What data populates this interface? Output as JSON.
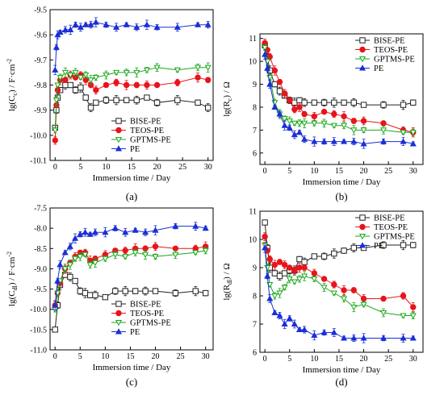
{
  "series_colors": {
    "BISE-PE": "#222222",
    "TEOS-PE": "#e8141b",
    "GPTMS-PE": "#1aa61a",
    "PE": "#1a2fd6"
  },
  "chart_data": [
    {
      "type": "line",
      "panel_label": "(a)",
      "xlabel": "Immersion time / Day",
      "ylabel": "lg(C",
      "ylabel_sub": "c",
      "ylabel_tail": ") / F·cm",
      "ylabel_sup": "-2",
      "xlim": [
        -1,
        31
      ],
      "ylim": [
        -10.1,
        -9.5
      ],
      "xticks": [
        0,
        5,
        10,
        15,
        20,
        25,
        30
      ],
      "xtick_labels": [
        "0",
        "5",
        "10",
        "15",
        "20",
        "25",
        "30"
      ],
      "yticks": [
        -10.1,
        -10.0,
        -9.9,
        -9.8,
        -9.7,
        -9.6,
        -9.5
      ],
      "ytick_labels": [
        "-10.1",
        "-10.0",
        "-9.9",
        "-9.8",
        "-9.7",
        "-9.6",
        "-9.5"
      ],
      "legend": "bottom-right",
      "series": [
        {
          "name": "BISE-PE",
          "marker": "square-open",
          "x": [
            0,
            0.25,
            0.5,
            1,
            2,
            3,
            4,
            5,
            6,
            7,
            8,
            10,
            12,
            14,
            16,
            18,
            20,
            24,
            28,
            30
          ],
          "y": [
            -9.97,
            -9.9,
            -9.85,
            -9.82,
            -9.8,
            -9.8,
            -9.82,
            -9.81,
            -9.85,
            -9.89,
            -9.87,
            -9.86,
            -9.86,
            -9.86,
            -9.86,
            -9.85,
            -9.87,
            -9.86,
            -9.87,
            -9.89
          ]
        },
        {
          "name": "TEOS-PE",
          "marker": "circle",
          "x": [
            0,
            0.25,
            0.5,
            1,
            2,
            3,
            4,
            5,
            6,
            7,
            8,
            10,
            12,
            14,
            16,
            18,
            20,
            24,
            28,
            30
          ],
          "y": [
            -10.02,
            -9.88,
            -9.82,
            -9.78,
            -9.78,
            -9.76,
            -9.77,
            -9.76,
            -9.78,
            -9.8,
            -9.82,
            -9.8,
            -9.79,
            -9.8,
            -9.8,
            -9.8,
            -9.8,
            -9.79,
            -9.77,
            -9.78
          ]
        },
        {
          "name": "GPTMS-PE",
          "marker": "triangle-down-open",
          "x": [
            0,
            0.25,
            0.5,
            1,
            2,
            3,
            4,
            5,
            6,
            7,
            8,
            10,
            12,
            14,
            16,
            18,
            20,
            24,
            28,
            30
          ],
          "y": [
            -9.98,
            -9.86,
            -9.8,
            -9.77,
            -9.75,
            -9.76,
            -9.75,
            -9.77,
            -9.76,
            -9.78,
            -9.77,
            -9.76,
            -9.75,
            -9.75,
            -9.75,
            -9.74,
            -9.73,
            -9.74,
            -9.73,
            -9.73
          ]
        },
        {
          "name": "PE",
          "marker": "triangle-up",
          "x": [
            0,
            0.25,
            0.5,
            1,
            2,
            3,
            4,
            5,
            6,
            7,
            8,
            10,
            12,
            14,
            16,
            18,
            20,
            24,
            28,
            30
          ],
          "y": [
            -9.74,
            -9.65,
            -9.6,
            -9.59,
            -9.58,
            -9.58,
            -9.56,
            -9.57,
            -9.56,
            -9.56,
            -9.55,
            -9.56,
            -9.57,
            -9.56,
            -9.57,
            -9.56,
            -9.57,
            -9.57,
            -9.56,
            -9.56
          ]
        }
      ]
    },
    {
      "type": "line",
      "panel_label": "(b)",
      "xlabel": "Immersion time / Day",
      "ylabel": "lg(R",
      "ylabel_sub": "c",
      "ylabel_tail": ") / Ω",
      "ylabel_sup": "",
      "xlim": [
        -1,
        32
      ],
      "ylim": [
        5.5,
        11.2
      ],
      "xticks": [
        0,
        5,
        10,
        15,
        20,
        25,
        30
      ],
      "xtick_labels": [
        "0",
        "5",
        "10",
        "15",
        "20",
        "25",
        "30"
      ],
      "yticks": [
        6,
        7,
        8,
        9,
        10,
        11
      ],
      "ytick_labels": [
        "6",
        "7",
        "8",
        "9",
        "10",
        "11"
      ],
      "legend": "top-right",
      "series": [
        {
          "name": "BISE-PE",
          "marker": "square-open",
          "x": [
            0,
            0.5,
            1,
            2,
            3,
            4,
            5,
            6,
            7,
            8,
            10,
            12,
            14,
            16,
            18,
            20,
            24,
            28,
            30
          ],
          "y": [
            10.7,
            10.2,
            9.6,
            9.0,
            8.7,
            8.5,
            8.3,
            8.2,
            8.3,
            8.2,
            8.2,
            8.2,
            8.2,
            8.2,
            8.2,
            8.1,
            8.1,
            8.1,
            8.2
          ]
        },
        {
          "name": "TEOS-PE",
          "marker": "circle",
          "x": [
            0,
            0.5,
            1,
            2,
            3,
            4,
            5,
            6,
            7,
            8,
            10,
            12,
            14,
            16,
            18,
            20,
            24,
            28,
            30
          ],
          "y": [
            10.8,
            10.5,
            10.2,
            9.6,
            9.1,
            8.6,
            8.3,
            7.9,
            8.0,
            7.7,
            7.6,
            7.8,
            7.7,
            7.6,
            7.4,
            7.4,
            7.3,
            7.0,
            6.9
          ]
        },
        {
          "name": "GPTMS-PE",
          "marker": "triangle-down-open",
          "x": [
            0,
            0.5,
            1,
            2,
            3,
            4,
            5,
            6,
            7,
            8,
            10,
            12,
            14,
            16,
            18,
            20,
            24,
            28,
            30
          ],
          "y": [
            10.6,
            10.0,
            9.3,
            8.2,
            7.7,
            7.5,
            7.4,
            7.3,
            7.3,
            7.3,
            7.3,
            7.3,
            7.2,
            7.2,
            7.0,
            7.0,
            7.0,
            6.9,
            6.9
          ]
        },
        {
          "name": "PE",
          "marker": "triangle-up",
          "x": [
            0,
            0.5,
            1,
            2,
            3,
            4,
            5,
            6,
            7,
            8,
            10,
            12,
            14,
            16,
            18,
            20,
            24,
            28,
            30
          ],
          "y": [
            10.3,
            9.7,
            9.0,
            8.0,
            7.7,
            7.2,
            7.1,
            6.8,
            6.9,
            6.6,
            6.5,
            6.5,
            6.5,
            6.5,
            6.5,
            6.4,
            6.5,
            6.5,
            6.4
          ]
        }
      ]
    },
    {
      "type": "line",
      "panel_label": "(c)",
      "xlabel": "Immersion time / Day",
      "ylabel": "lg(C",
      "ylabel_sub": "dl",
      "ylabel_tail": ") / F·cm",
      "ylabel_sup": "-2",
      "xlim": [
        -1,
        31.5
      ],
      "ylim": [
        -11.0,
        -7.5
      ],
      "xticks": [
        0,
        5,
        10,
        15,
        20,
        25,
        30
      ],
      "xtick_labels": [
        "0",
        "5",
        "10",
        "15",
        "20",
        "25",
        "30"
      ],
      "yticks": [
        -11.0,
        -10.5,
        -10.0,
        -9.5,
        -9.0,
        -8.5,
        -8.0,
        -7.5
      ],
      "ytick_labels": [
        "-11.0",
        "-10.5",
        "-10.0",
        "-9.5",
        "-9.0",
        "-8.5",
        "-8.0",
        "-7.5"
      ],
      "legend": "bottom-right",
      "series": [
        {
          "name": "BISE-PE",
          "marker": "square-open",
          "x": [
            0,
            0.5,
            1,
            2,
            3,
            4,
            5,
            6,
            7,
            8,
            10,
            12,
            14,
            16,
            18,
            20,
            24,
            28,
            30
          ],
          "y": [
            -10.5,
            -9.9,
            -9.4,
            -9.15,
            -9.2,
            -9.3,
            -9.55,
            -9.6,
            -9.65,
            -9.65,
            -9.7,
            -9.55,
            -9.55,
            -9.55,
            -9.55,
            -9.55,
            -9.6,
            -9.55,
            -9.6
          ]
        },
        {
          "name": "TEOS-PE",
          "marker": "circle",
          "x": [
            0,
            0.5,
            1,
            2,
            3,
            4,
            5,
            6,
            7,
            8,
            10,
            12,
            14,
            16,
            18,
            20,
            24,
            28,
            30
          ],
          "y": [
            -9.9,
            -9.6,
            -9.35,
            -9.0,
            -8.85,
            -8.7,
            -8.6,
            -8.6,
            -8.8,
            -8.75,
            -8.65,
            -8.55,
            -8.55,
            -8.5,
            -8.5,
            -8.45,
            -8.5,
            -8.5,
            -8.45
          ]
        },
        {
          "name": "GPTMS-PE",
          "marker": "triangle-down-open",
          "x": [
            0,
            0.5,
            1,
            2,
            3,
            4,
            5,
            6,
            7,
            8,
            10,
            12,
            14,
            16,
            18,
            20,
            24,
            28,
            30
          ],
          "y": [
            -10.0,
            -9.6,
            -9.3,
            -9.0,
            -8.9,
            -8.75,
            -8.7,
            -8.65,
            -8.9,
            -8.85,
            -8.75,
            -8.65,
            -8.7,
            -8.6,
            -8.65,
            -8.7,
            -8.65,
            -8.6,
            -8.55
          ]
        },
        {
          "name": "PE",
          "marker": "triangle-up",
          "x": [
            0,
            0.5,
            1,
            2,
            3,
            4,
            5,
            6,
            7,
            8,
            10,
            12,
            14,
            16,
            18,
            20,
            24,
            28,
            30
          ],
          "y": [
            -9.9,
            -9.3,
            -8.9,
            -8.6,
            -8.45,
            -8.25,
            -8.15,
            -8.1,
            -8.15,
            -8.1,
            -8.1,
            -8.0,
            -8.1,
            -8.05,
            -8.1,
            -8.05,
            -7.95,
            -7.95,
            -8.0
          ]
        }
      ]
    },
    {
      "type": "line",
      "panel_label": "(d)",
      "xlabel": "Immersion time / Day",
      "ylabel": "lg(R",
      "ylabel_sub": "dl",
      "ylabel_tail": ") / Ω",
      "ylabel_sup": "",
      "xlim": [
        -1,
        32
      ],
      "ylim": [
        6,
        11
      ],
      "xticks": [
        0,
        5,
        10,
        15,
        20,
        25,
        30
      ],
      "xtick_labels": [
        "0",
        "5",
        "10",
        "15",
        "20",
        "25",
        "30"
      ],
      "yticks": [
        6,
        7,
        8,
        9,
        10,
        11
      ],
      "ytick_labels": [
        "6",
        "7",
        "8",
        "9",
        "10",
        "11"
      ],
      "legend": "top-right",
      "series": [
        {
          "name": "BISE-PE",
          "marker": "square-open",
          "x": [
            0,
            0.5,
            1,
            2,
            3,
            4,
            5,
            6,
            7,
            8,
            10,
            12,
            14,
            16,
            18,
            20,
            24,
            28,
            30
          ],
          "y": [
            10.6,
            9.7,
            9.0,
            8.8,
            8.7,
            8.8,
            8.9,
            8.9,
            9.3,
            9.2,
            9.4,
            9.4,
            9.5,
            9.6,
            9.7,
            9.7,
            9.8,
            9.8,
            9.8
          ]
        },
        {
          "name": "TEOS-PE",
          "marker": "circle",
          "x": [
            0,
            0.5,
            1,
            2,
            3,
            4,
            5,
            6,
            7,
            8,
            10,
            12,
            14,
            16,
            18,
            20,
            24,
            28,
            30
          ],
          "y": [
            10.1,
            9.6,
            9.3,
            9.1,
            9.2,
            9.1,
            9.0,
            8.9,
            9.0,
            9.0,
            8.8,
            8.6,
            8.4,
            8.2,
            8.2,
            7.9,
            7.9,
            8.0,
            7.6
          ]
        },
        {
          "name": "GPTMS-PE",
          "marker": "triangle-down-open",
          "x": [
            0,
            0.5,
            1,
            2,
            3,
            4,
            5,
            6,
            7,
            8,
            10,
            12,
            14,
            16,
            18,
            20,
            24,
            28,
            30
          ],
          "y": [
            9.8,
            9.0,
            8.4,
            8.0,
            8.1,
            8.3,
            8.6,
            8.5,
            8.6,
            8.7,
            8.6,
            8.3,
            8.1,
            7.9,
            7.6,
            7.7,
            7.4,
            7.3,
            7.3
          ]
        },
        {
          "name": "PE",
          "marker": "triangle-up",
          "x": [
            0,
            0.5,
            1,
            2,
            3,
            4,
            5,
            6,
            7,
            8,
            10,
            12,
            14,
            16,
            18,
            20,
            24,
            28,
            30
          ],
          "y": [
            9.7,
            8.7,
            7.9,
            7.4,
            7.3,
            7.0,
            7.2,
            7.0,
            6.8,
            6.8,
            6.6,
            6.7,
            6.7,
            6.5,
            6.5,
            6.5,
            6.5,
            6.5,
            6.5
          ]
        }
      ]
    }
  ]
}
